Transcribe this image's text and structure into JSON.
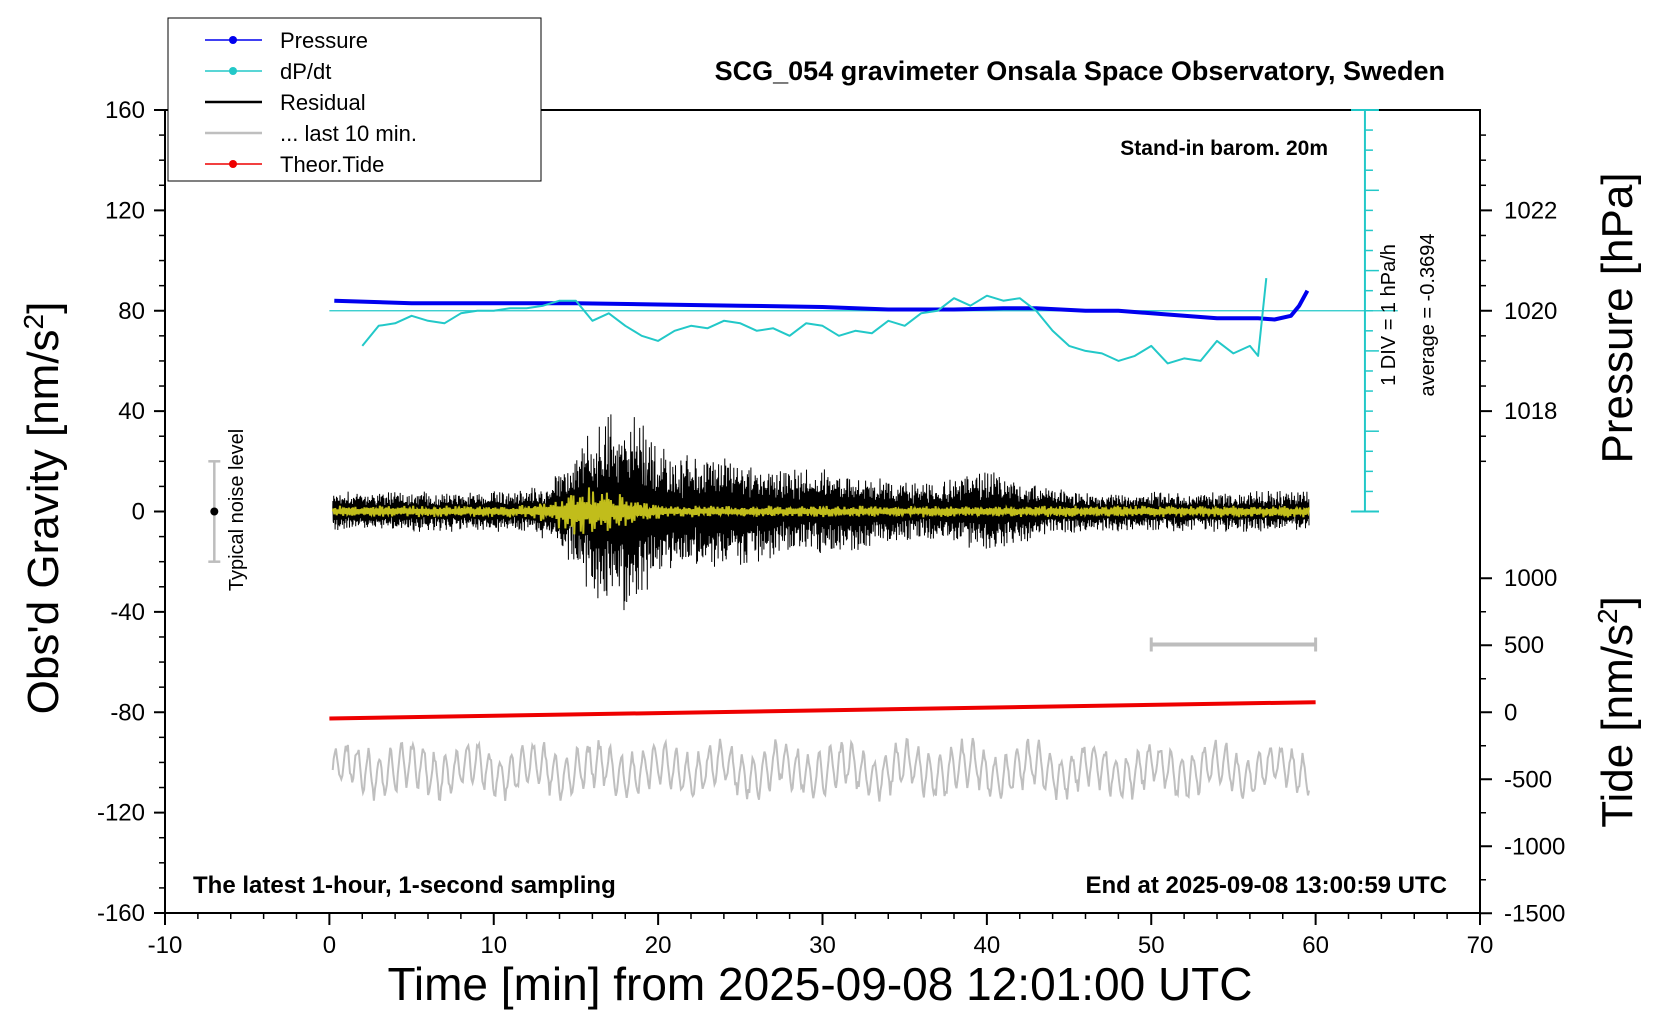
{
  "chart_data": {
    "type": "line",
    "title": "SCG_054 gravimeter Onsala Space Observatory, Sweden",
    "subtitle_left": "The latest 1-hour, 1-second sampling",
    "subtitle_right": "End at 2025-09-08 13:00:59 UTC",
    "stand_in_note": "Stand-in barom. 20m",
    "xlabel": "Time [min] from 2025-09-08 12:01:00 UTC",
    "xlim": [
      -10,
      70
    ],
    "xticks": [
      -10,
      0,
      10,
      20,
      30,
      40,
      50,
      60,
      70
    ],
    "left_axis": {
      "label": "Obs'd Gravity [nm/s",
      "label_sup": "2",
      "label_end": "]",
      "ylim": [
        -160,
        160
      ],
      "ticks": [
        -160,
        -120,
        -80,
        -40,
        0,
        40,
        80,
        120,
        160
      ]
    },
    "right_axis_pressure": {
      "label": "Pressure [hPa]",
      "ticks": [
        1018,
        1020,
        1022
      ],
      "gravity_for_1020": 80,
      "gravity_per_hPa": 40
    },
    "right_axis_tide": {
      "label": "Tide [nm/s",
      "label_sup": "2",
      "label_end": "]",
      "ticks": [
        1000,
        500,
        0,
        -500,
        -1000,
        -1500
      ],
      "gravity_at_zero": -80,
      "gravity_per_500": 26.7
    },
    "dpdt_scale": {
      "label": "1 DIV = 1 hPa/h",
      "average_label": "average = -0.3694",
      "x_minutes": 63,
      "y_top": 160,
      "y_bottom": 0,
      "baseline": 80,
      "divisions": 20
    },
    "noise_marker": {
      "label": "Typical noise level",
      "x": -7,
      "center": 0,
      "half_range": 20
    },
    "ten_min_bar": {
      "x_start": 50,
      "x_end": 60,
      "y": -53
    },
    "legend": [
      {
        "name": "Pressure",
        "color": "#0000ee",
        "marker": true
      },
      {
        "name": "dP/dt",
        "color": "#22c8c8",
        "marker": true
      },
      {
        "name": "Residual",
        "color": "#000000",
        "marker": false
      },
      {
        "name": "... last 10 min.",
        "color": "#bfbfbf",
        "marker": false
      },
      {
        "name": "Theor.Tide",
        "color": "#ee0000",
        "marker": true
      }
    ],
    "series": [
      {
        "name": "Pressure",
        "color": "#0000ee",
        "x": [
          0.3,
          5,
          10,
          15,
          20,
          25,
          30,
          34,
          38,
          41,
          43,
          46,
          48,
          50,
          52,
          54,
          55.5,
          56.5,
          57.5,
          58.5,
          59,
          59.5
        ],
        "y": [
          84,
          83,
          83,
          83,
          82.5,
          82,
          81.5,
          80.5,
          80.5,
          81,
          81,
          80,
          80,
          79,
          78,
          77,
          77,
          77,
          76.5,
          78,
          82,
          88
        ]
      },
      {
        "name": "dP/dt",
        "color": "#22c8c8",
        "x": [
          2,
          3,
          4,
          5,
          6,
          7,
          8,
          9,
          10,
          11,
          12,
          13,
          14,
          15,
          16,
          17,
          18,
          19,
          20,
          21,
          22,
          23,
          24,
          25,
          26,
          27,
          28,
          29,
          30,
          31,
          32,
          33,
          34,
          35,
          36,
          37,
          38,
          39,
          40,
          41,
          42,
          43,
          44,
          45,
          46,
          47,
          48,
          49,
          50,
          51,
          52,
          53,
          54,
          55,
          56,
          56.5,
          57
        ],
        "y": [
          66,
          74,
          75,
          78,
          76,
          75,
          79,
          80,
          80,
          81,
          81,
          82,
          84,
          84,
          76,
          79,
          74,
          70,
          68,
          72,
          74,
          73,
          76,
          75,
          72,
          73,
          70,
          75,
          74,
          70,
          72,
          71,
          76,
          74,
          79,
          80,
          85,
          82,
          86,
          84,
          85,
          80,
          72,
          66,
          64,
          63,
          60,
          62,
          66,
          59,
          61,
          60,
          68,
          63,
          66,
          62,
          93
        ]
      },
      {
        "name": "Theor.Tide",
        "color": "#ee0000",
        "x": [
          0,
          60
        ],
        "y": [
          -82.5,
          -76
        ]
      }
    ]
  }
}
